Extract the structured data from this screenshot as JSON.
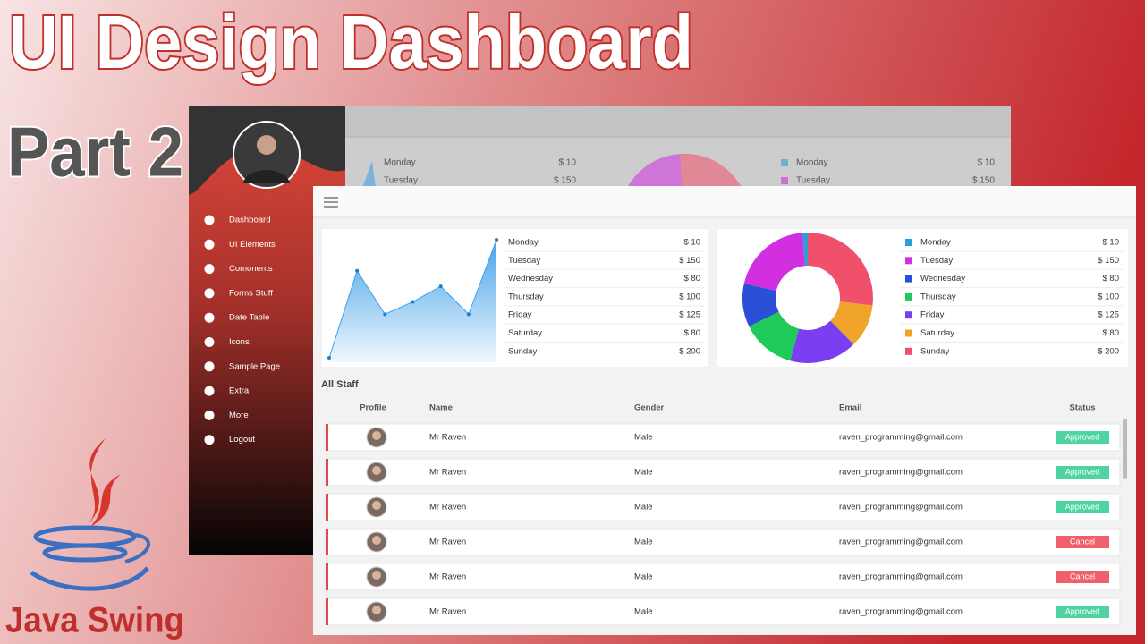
{
  "header": {
    "title": "UI Design Dashboard",
    "part": "Part 2",
    "footer": "Java Swing"
  },
  "sidebar": {
    "menu": [
      "Dashboard",
      "UI Elements",
      "Comonents",
      "Forms Stuff",
      "Date Table",
      "Icons",
      "Sample Page",
      "Extra",
      "More",
      "Logout"
    ]
  },
  "background_window": {
    "rows": [
      {
        "day": "Monday",
        "amount": "$ 10"
      },
      {
        "day": "Tuesday",
        "amount": "$ 150"
      }
    ]
  },
  "chart_data": [
    {
      "type": "line",
      "categories": [
        "Monday",
        "Tuesday",
        "Wednesday",
        "Thursday",
        "Friday",
        "Saturday",
        "Sunday"
      ],
      "values": [
        10,
        150,
        80,
        100,
        125,
        80,
        200
      ],
      "value_labels": [
        "$ 10",
        "$ 150",
        "$ 80",
        "$ 100",
        "$ 125",
        "$ 80",
        "$ 200"
      ],
      "color": "#3d9fe8"
    },
    {
      "type": "pie",
      "categories": [
        "Monday",
        "Tuesday",
        "Wednesday",
        "Thursday",
        "Friday",
        "Saturday",
        "Sunday"
      ],
      "values": [
        10,
        150,
        80,
        100,
        125,
        80,
        200
      ],
      "value_labels": [
        "$ 10",
        "$ 150",
        "$ 80",
        "$ 100",
        "$ 125",
        "$ 80",
        "$ 200"
      ],
      "colors": [
        "#2a9fd8",
        "#d22fe0",
        "#2c4fd8",
        "#1fc95a",
        "#7a3ff0",
        "#f0a52a",
        "#f0506a"
      ]
    }
  ],
  "staff": {
    "title": "All Staff",
    "columns": [
      "Profile",
      "Name",
      "Gender",
      "Email",
      "Status"
    ],
    "rows": [
      {
        "name": "Mr Raven",
        "gender": "Male",
        "email": "raven_programming@gmail.com",
        "status": "Approved",
        "status_color": "#4dd4a0"
      },
      {
        "name": "Mr Raven",
        "gender": "Male",
        "email": "raven_programming@gmail.com",
        "status": "Approved",
        "status_color": "#4dd4a0"
      },
      {
        "name": "Mr Raven",
        "gender": "Male",
        "email": "raven_programming@gmail.com",
        "status": "Approved",
        "status_color": "#4dd4a0"
      },
      {
        "name": "Mr Raven",
        "gender": "Male",
        "email": "raven_programming@gmail.com",
        "status": "Cancel",
        "status_color": "#f0606a"
      },
      {
        "name": "Mr Raven",
        "gender": "Male",
        "email": "raven_programming@gmail.com",
        "status": "Cancel",
        "status_color": "#f0606a"
      },
      {
        "name": "Mr Raven",
        "gender": "Male",
        "email": "raven_programming@gmail.com",
        "status": "Approved",
        "status_color": "#4dd4a0"
      }
    ]
  }
}
